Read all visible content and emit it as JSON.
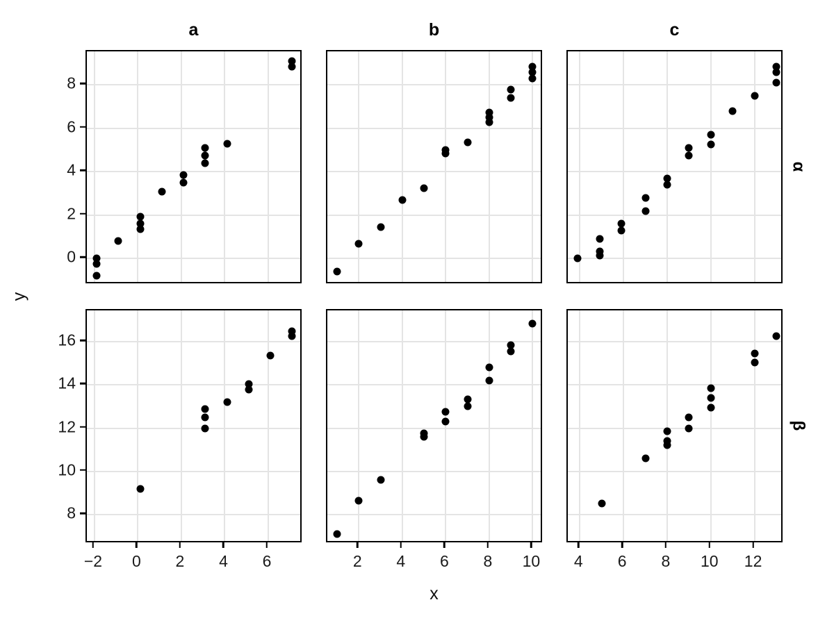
{
  "figure": {
    "background": "#ffffff",
    "xlabel": "x",
    "ylabel": "y"
  },
  "chart_data": {
    "type": "scatter",
    "title": "",
    "xlabel": "x",
    "ylabel": "y",
    "grid": "major-on",
    "legend": "none",
    "point_color": "#000000",
    "grid_color": "#e4e4e4",
    "border_color": "#000000",
    "facet": {
      "col_labels": [
        "a",
        "b",
        "c"
      ],
      "row_labels": [
        "α",
        "β"
      ]
    },
    "columns": [
      {
        "label": "a",
        "xticks": [
          -2,
          0,
          2,
          4,
          6
        ],
        "xlim": [
          -2.35,
          7.6
        ]
      },
      {
        "label": "b",
        "xticks": [
          2,
          4,
          6,
          8,
          10
        ],
        "xlim": [
          0.55,
          10.5
        ]
      },
      {
        "label": "c",
        "xticks": [
          4,
          6,
          8,
          10,
          12
        ],
        "xlim": [
          3.45,
          13.35
        ]
      }
    ],
    "rows": [
      {
        "label": "α",
        "yticks": [
          0,
          2,
          4,
          6,
          8
        ],
        "ylim": [
          -1.2,
          9.55
        ]
      },
      {
        "label": "β",
        "yticks": [
          8,
          10,
          12,
          14,
          16
        ],
        "ylim": [
          6.65,
          17.45
        ]
      }
    ],
    "panels": [
      {
        "row": "α",
        "col": "a",
        "points": [
          [
            -1.9,
            0.0
          ],
          [
            -1.9,
            -0.25
          ],
          [
            -1.9,
            -0.78
          ],
          [
            -0.9,
            0.82
          ],
          [
            0.1,
            1.95
          ],
          [
            0.1,
            1.6
          ],
          [
            0.1,
            1.35
          ],
          [
            1.1,
            3.1
          ],
          [
            2.1,
            3.85
          ],
          [
            2.1,
            3.5
          ],
          [
            3.1,
            5.1
          ],
          [
            3.1,
            4.75
          ],
          [
            3.1,
            4.4
          ],
          [
            4.1,
            5.3
          ],
          [
            7.1,
            9.1
          ],
          [
            7.1,
            8.85
          ]
        ]
      },
      {
        "row": "α",
        "col": "b",
        "points": [
          [
            1,
            -0.6
          ],
          [
            2,
            0.7
          ],
          [
            3,
            1.45
          ],
          [
            4,
            2.7
          ],
          [
            5,
            3.25
          ],
          [
            6,
            5.0
          ],
          [
            6,
            4.85
          ],
          [
            7,
            5.35
          ],
          [
            8,
            6.75
          ],
          [
            8,
            6.5
          ],
          [
            8,
            6.3
          ],
          [
            9,
            7.8
          ],
          [
            9,
            7.4
          ],
          [
            10,
            8.85
          ],
          [
            10,
            8.6
          ],
          [
            10,
            8.3
          ]
        ]
      },
      {
        "row": "α",
        "col": "c",
        "points": [
          [
            3.9,
            0.0
          ],
          [
            4.9,
            0.9
          ],
          [
            4.9,
            0.35
          ],
          [
            4.9,
            0.15
          ],
          [
            5.9,
            1.6
          ],
          [
            5.9,
            1.3
          ],
          [
            7,
            2.8
          ],
          [
            7,
            2.2
          ],
          [
            8,
            3.7
          ],
          [
            8,
            3.4
          ],
          [
            9,
            5.1
          ],
          [
            9,
            4.75
          ],
          [
            10,
            5.7
          ],
          [
            10,
            5.25
          ],
          [
            11,
            6.8
          ],
          [
            12,
            7.5
          ],
          [
            13,
            8.85
          ],
          [
            13,
            8.6
          ],
          [
            13,
            8.1
          ]
        ]
      },
      {
        "row": "β",
        "col": "a",
        "points": [
          [
            0.1,
            9.2
          ],
          [
            3.1,
            12.9
          ],
          [
            3.1,
            12.5
          ],
          [
            3.1,
            12.0
          ],
          [
            4.1,
            13.2
          ],
          [
            5.1,
            14.05
          ],
          [
            5.1,
            13.8
          ],
          [
            6.1,
            15.35
          ],
          [
            7.1,
            16.5
          ],
          [
            7.1,
            16.25
          ]
        ]
      },
      {
        "row": "β",
        "col": "b",
        "points": [
          [
            1,
            7.1
          ],
          [
            2,
            8.65
          ],
          [
            3,
            9.6
          ],
          [
            5,
            11.75
          ],
          [
            5,
            11.6
          ],
          [
            6,
            12.75
          ],
          [
            6,
            12.3
          ],
          [
            7,
            13.35
          ],
          [
            7,
            13.0
          ],
          [
            8,
            14.8
          ],
          [
            8,
            14.2
          ],
          [
            9,
            15.85
          ],
          [
            9,
            15.55
          ],
          [
            10,
            16.85
          ]
        ]
      },
      {
        "row": "β",
        "col": "c",
        "points": [
          [
            5,
            8.5
          ],
          [
            7,
            10.6
          ],
          [
            8,
            11.85
          ],
          [
            8,
            11.4
          ],
          [
            8,
            11.2
          ],
          [
            9,
            12.5
          ],
          [
            9,
            12.0
          ],
          [
            10,
            13.85
          ],
          [
            10,
            13.4
          ],
          [
            10,
            12.95
          ],
          [
            12,
            15.45
          ],
          [
            12,
            15.05
          ],
          [
            13,
            16.25
          ]
        ]
      }
    ]
  }
}
